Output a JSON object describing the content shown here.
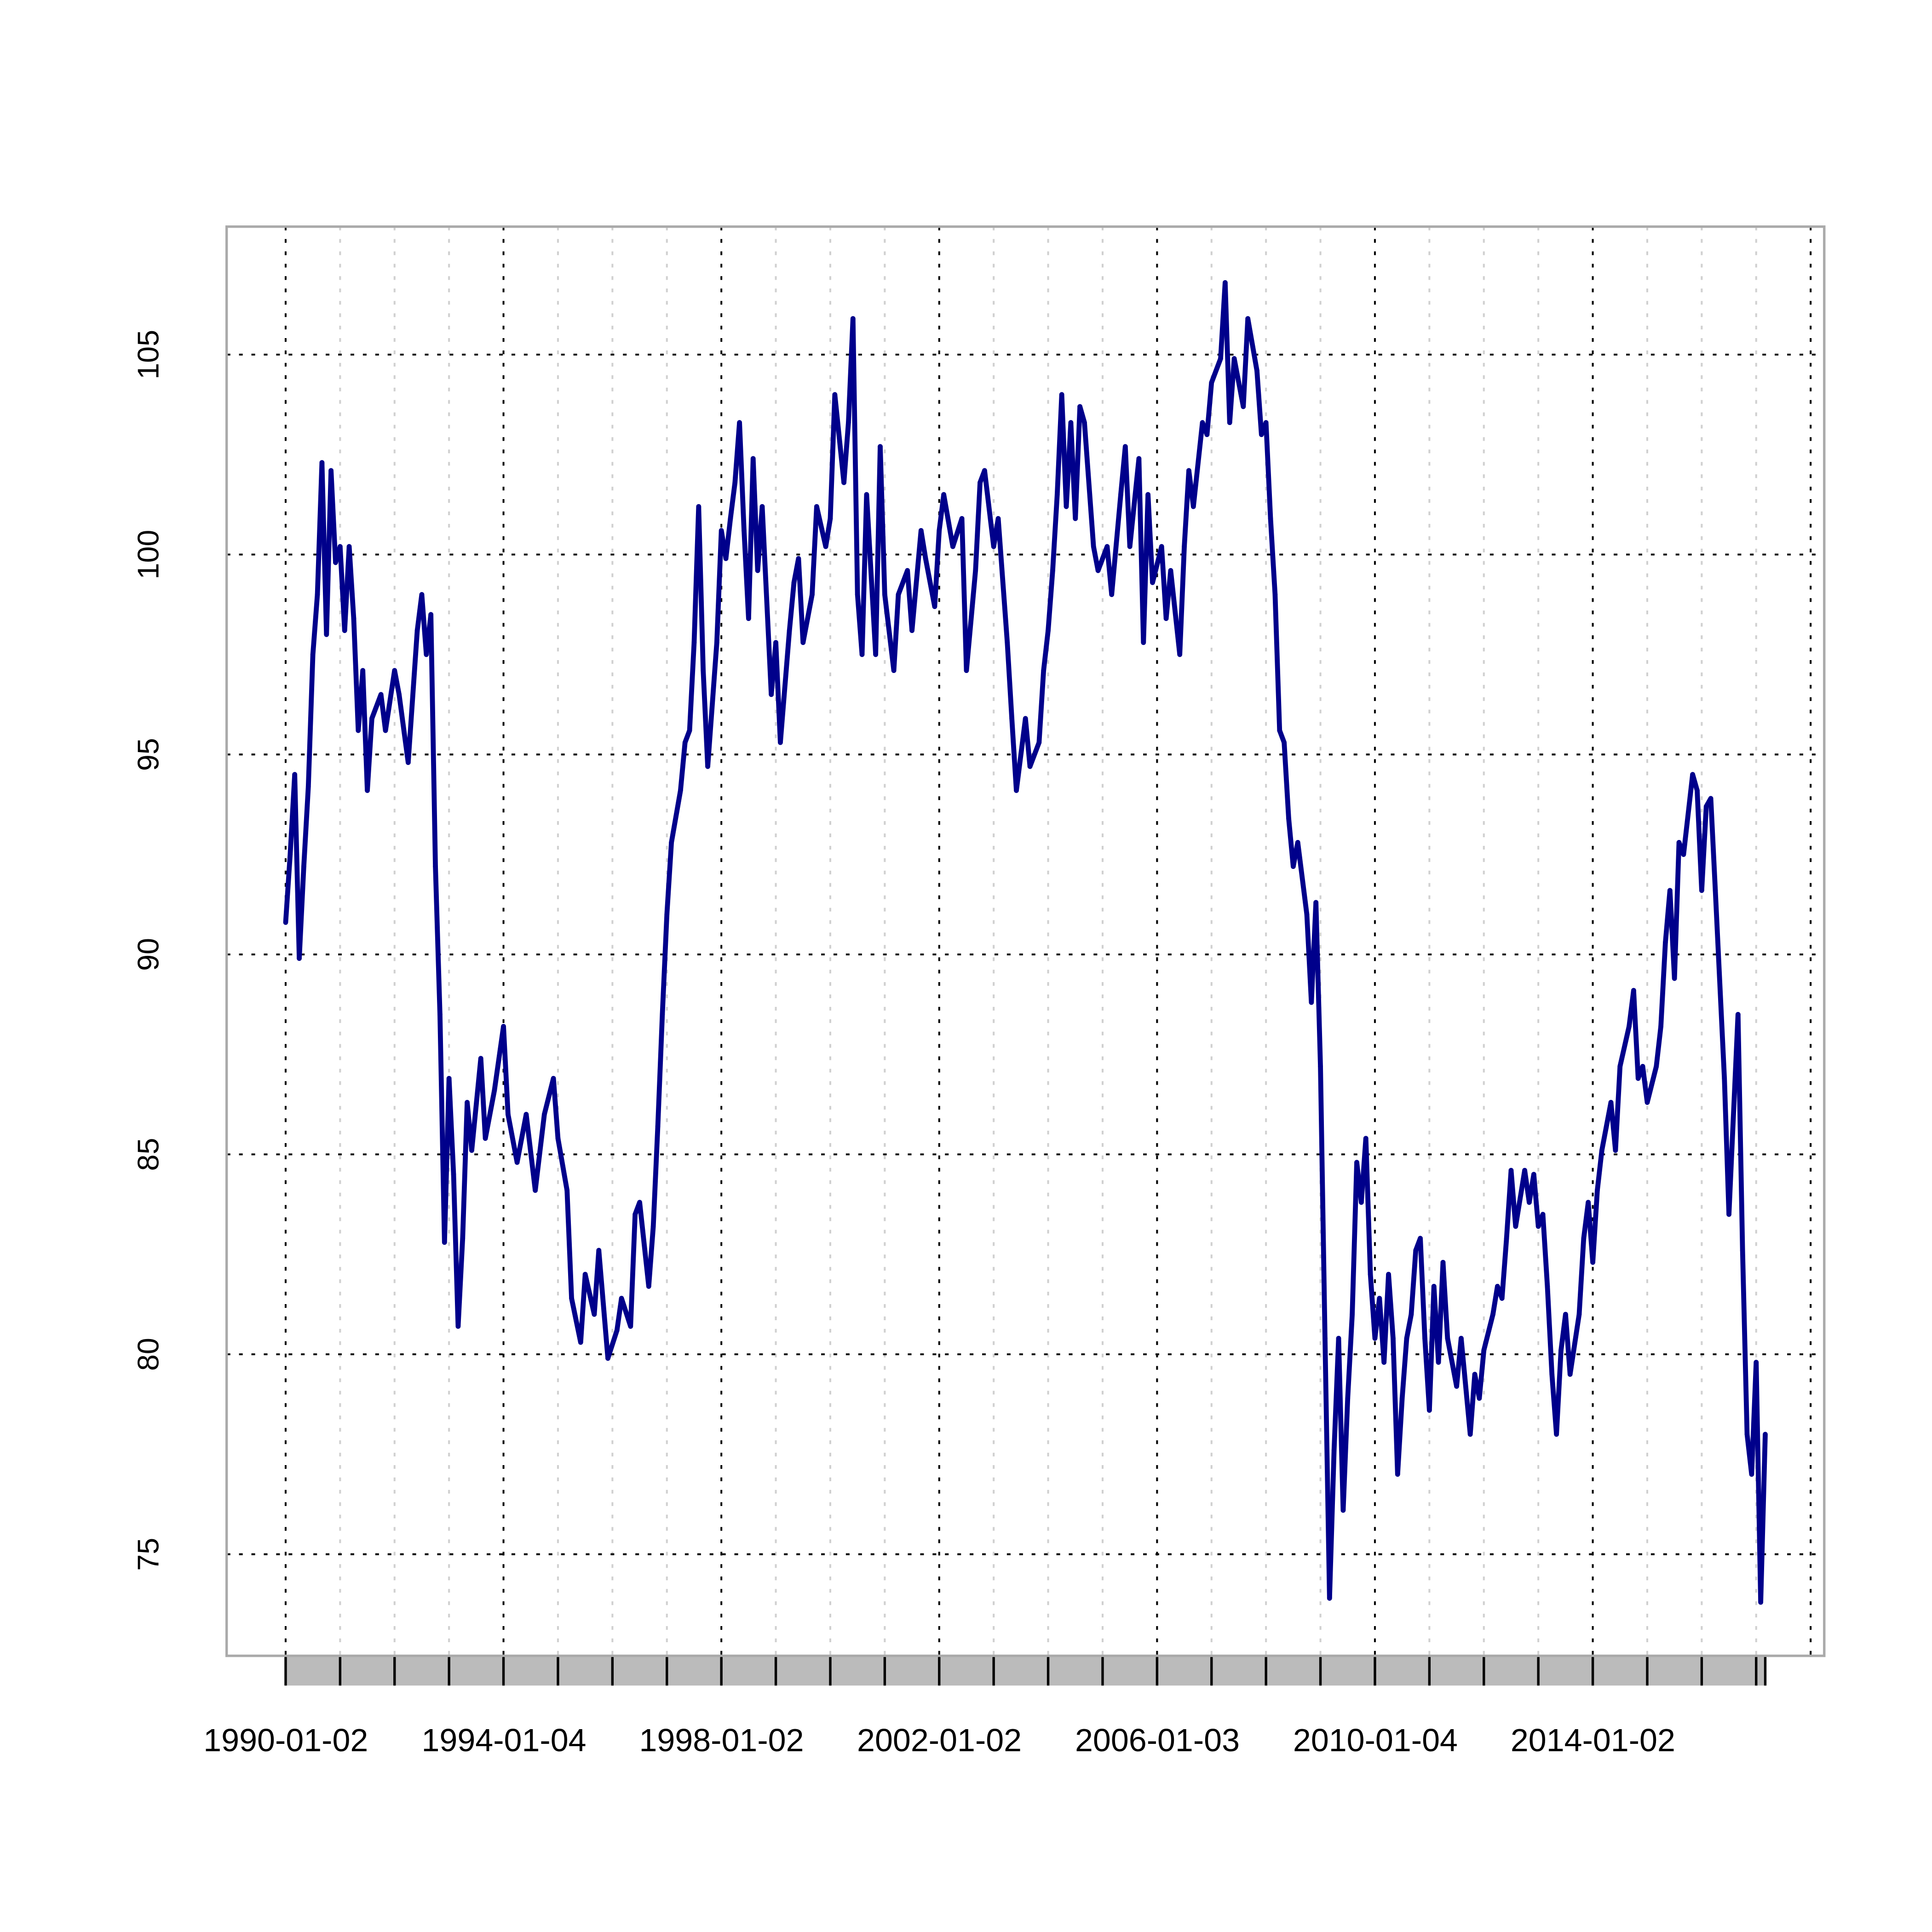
{
  "chart_data": {
    "type": "line",
    "title": "",
    "xlabel": "",
    "ylabel": "",
    "x_axis_type": "date",
    "xlim": [
      "1988-12",
      "2018-04"
    ],
    "ylim": [
      72.46,
      108.2
    ],
    "y_ticks": [
      75,
      80,
      85,
      90,
      95,
      100,
      105
    ],
    "x_tick_labels": [
      "1990-01-02",
      "1994-01-04",
      "1998-01-02",
      "2002-01-02",
      "2006-01-03",
      "2010-01-04",
      "2014-01-02"
    ],
    "x_major_grid_years": [
      1990,
      1994,
      1998,
      2002,
      2006,
      2010,
      2014,
      2018
    ],
    "x_minor_grid": "yearly",
    "grid": true,
    "line_color": "#00008b",
    "grid_color_major": "#000000",
    "grid_color_minor": "#d0d0d0",
    "box_color": "#aaaaaa",
    "range_band_color": "#bbbbbb",
    "series": [
      {
        "x": [
          "1990-01",
          "1990-02",
          "1990-03",
          "1990-04",
          "1990-05",
          "1990-06",
          "1990-07",
          "1990-08",
          "1990-09",
          "1990-10",
          "1990-11",
          "1990-12",
          "1991-01",
          "1991-02",
          "1991-03",
          "1991-04",
          "1991-05",
          "1991-06",
          "1991-07",
          "1991-08",
          "1991-10",
          "1991-11",
          "1992-01",
          "1992-02",
          "1992-04",
          "1992-06",
          "1992-07",
          "1992-08",
          "1992-09",
          "1992-10",
          "1992-11",
          "1992-12",
          "1993-01",
          "1993-02",
          "1993-03",
          "1993-04",
          "1993-05",
          "1993-06",
          "1993-08",
          "1993-09",
          "1993-11",
          "1994-01",
          "1994-02",
          "1994-04",
          "1994-06",
          "1994-08",
          "1994-10",
          "1994-12",
          "1995-01",
          "1995-03",
          "1995-04",
          "1995-06",
          "1995-07",
          "1995-09",
          "1995-10",
          "1995-12",
          "1996-02",
          "1996-03",
          "1996-05",
          "1996-06",
          "1996-07",
          "1996-09",
          "1996-10",
          "1996-11",
          "1996-12",
          "1997-01",
          "1997-02",
          "1997-04",
          "1997-05",
          "1997-06",
          "1997-07",
          "1997-08",
          "1997-09",
          "1997-10",
          "1997-12",
          "1998-01",
          "1998-02",
          "1998-03",
          "1998-04",
          "1998-05",
          "1998-06",
          "1998-07",
          "1998-08",
          "1998-09",
          "1998-10",
          "1998-12",
          "1999-01",
          "1999-02",
          "1999-04",
          "1999-05",
          "1999-06",
          "1999-07",
          "1999-09",
          "1999-10",
          "1999-12",
          "2000-01",
          "2000-02",
          "2000-04",
          "2000-05",
          "2000-06",
          "2000-07",
          "2000-08",
          "2000-09",
          "2000-11",
          "2000-12",
          "2001-01",
          "2001-03",
          "2001-04",
          "2001-06",
          "2001-07",
          "2001-09",
          "2001-10",
          "2001-12",
          "2002-01",
          "2002-02",
          "2002-04",
          "2002-06",
          "2002-07",
          "2002-09",
          "2002-10",
          "2002-11",
          "2003-01",
          "2003-02",
          "2003-04",
          "2003-05",
          "2003-06",
          "2003-08",
          "2003-09",
          "2003-11",
          "2003-12",
          "2004-01",
          "2004-02",
          "2004-03",
          "2004-04",
          "2004-05",
          "2004-06",
          "2004-07",
          "2004-08",
          "2004-09",
          "2004-11",
          "2004-12",
          "2005-02",
          "2005-03",
          "2005-05",
          "2005-06",
          "2005-07",
          "2005-09",
          "2005-10",
          "2005-11",
          "2005-12",
          "2006-02",
          "2006-03",
          "2006-04",
          "2006-06",
          "2006-07",
          "2006-08",
          "2006-09",
          "2006-11",
          "2006-12",
          "2007-01",
          "2007-03",
          "2007-04",
          "2007-05",
          "2007-06",
          "2007-08",
          "2007-09",
          "2007-11",
          "2007-12",
          "2008-01",
          "2008-02",
          "2008-03",
          "2008-04",
          "2008-05",
          "2008-06",
          "2008-07",
          "2008-08",
          "2008-10",
          "2008-11",
          "2008-12",
          "2009-01",
          "2009-02",
          "2009-03",
          "2009-04",
          "2009-05",
          "2009-06",
          "2009-07",
          "2009-08",
          "2009-09",
          "2009-10",
          "2009-11",
          "2009-12",
          "2010-01",
          "2010-02",
          "2010-03",
          "2010-04",
          "2010-05",
          "2010-06",
          "2010-07",
          "2010-08",
          "2010-09",
          "2010-10",
          "2010-11",
          "2010-12",
          "2011-01",
          "2011-02",
          "2011-03",
          "2011-04",
          "2011-05",
          "2011-07",
          "2011-08",
          "2011-10",
          "2011-11",
          "2011-12",
          "2012-01",
          "2012-03",
          "2012-04",
          "2012-05",
          "2012-06",
          "2012-07",
          "2012-08",
          "2012-10",
          "2012-11",
          "2012-12",
          "2013-01",
          "2013-02",
          "2013-03",
          "2013-04",
          "2013-05",
          "2013-06",
          "2013-07",
          "2013-08",
          "2013-10",
          "2013-11",
          "2013-12",
          "2014-01",
          "2014-02",
          "2014-03",
          "2014-05",
          "2014-06",
          "2014-07",
          "2014-09",
          "2014-10",
          "2014-11",
          "2014-12",
          "2015-01",
          "2015-03",
          "2015-04",
          "2015-05",
          "2015-06",
          "2015-07",
          "2015-08",
          "2015-09",
          "2015-11",
          "2015-12",
          "2016-01",
          "2016-02",
          "2016-03",
          "2016-04",
          "2016-06",
          "2016-07",
          "2016-09",
          "2016-10",
          "2016-11",
          "2016-12",
          "2017-01",
          "2017-02",
          "2017-03"
        ],
        "values": [
          90.8,
          92.5,
          94.5,
          89.9,
          92.2,
          94.2,
          97.5,
          99,
          102.3,
          98,
          102.1,
          99.8,
          100.2,
          98.1,
          100.2,
          98.4,
          95.6,
          97.1,
          94.1,
          95.9,
          96.5,
          95.6,
          97.1,
          96.5,
          94.8,
          98.1,
          99,
          97.5,
          98.5,
          92.2,
          88.5,
          82.8,
          86.9,
          84.5,
          80.7,
          82.9,
          86.3,
          85.1,
          87.4,
          85.4,
          86.6,
          88.2,
          86,
          84.8,
          86,
          84.1,
          86,
          86.9,
          85.4,
          84.1,
          81.4,
          80.3,
          82,
          81,
          82.6,
          79.9,
          80.6,
          81.4,
          80.7,
          83.5,
          83.8,
          81.7,
          83.2,
          85.7,
          88.5,
          91,
          92.8,
          94.1,
          95.3,
          95.6,
          97.8,
          101.2,
          97.1,
          94.7,
          97.8,
          100.6,
          99.9,
          100.9,
          101.8,
          103.3,
          100.6,
          98.4,
          102.4,
          99.6,
          101.2,
          96.5,
          97.8,
          95.3,
          98.1,
          99.3,
          99.9,
          97.8,
          99,
          101.2,
          100.2,
          100.9,
          104,
          101.8,
          103.3,
          105.9,
          99,
          97.5,
          101.5,
          97.5,
          102.7,
          99,
          97.1,
          99,
          99.6,
          98.1,
          100.6,
          99.9,
          98.7,
          100.6,
          101.5,
          100.2,
          100.9,
          97.1,
          99.6,
          101.8,
          102.1,
          100.2,
          100.9,
          97.8,
          95.9,
          94.1,
          95.9,
          94.7,
          95.3,
          97.1,
          98.1,
          99.6,
          101.5,
          104,
          101.2,
          103.3,
          100.9,
          103.7,
          103.3,
          100.2,
          99.6,
          100.2,
          99,
          101.5,
          102.7,
          100.2,
          102.4,
          97.8,
          101.5,
          99.3,
          100.2,
          98.4,
          99.6,
          97.5,
          100.2,
          102.1,
          101.2,
          103.3,
          103,
          104.3,
          104.9,
          106.8,
          103.3,
          104.9,
          103.7,
          105.9,
          104.6,
          103,
          103.3,
          100.9,
          99,
          95.6,
          95.3,
          93.4,
          92.2,
          92.8,
          91,
          88.8,
          91.3,
          87.2,
          80.4,
          73.9,
          77.6,
          80.4,
          76.1,
          78.9,
          81,
          84.8,
          83.8,
          85.4,
          82,
          80.4,
          81.4,
          79.8,
          82,
          80.4,
          77,
          78.9,
          80.4,
          81,
          82.6,
          82.9,
          80.4,
          78.6,
          81.7,
          79.8,
          82.3,
          80.4,
          79.2,
          80.4,
          78,
          79.5,
          78.9,
          80.1,
          81,
          81.7,
          81.4,
          82.9,
          84.6,
          83.2,
          84.6,
          83.8,
          84.5,
          83.2,
          83.5,
          81.7,
          79.5,
          78,
          80.1,
          81,
          79.5,
          81,
          82.9,
          83.8,
          82.3,
          84.1,
          85.1,
          86.3,
          85.1,
          87.2,
          88.2,
          89.1,
          86.9,
          87.2,
          86.3,
          87.2,
          88.2,
          90.3,
          91.6,
          89.4,
          92.8,
          92.5,
          94.5,
          94.1,
          91.6,
          93.7,
          93.9,
          91.6,
          86.9,
          83.5,
          88.5,
          82.6,
          78,
          77,
          79.8,
          73.8,
          78
        ]
      }
    ]
  }
}
